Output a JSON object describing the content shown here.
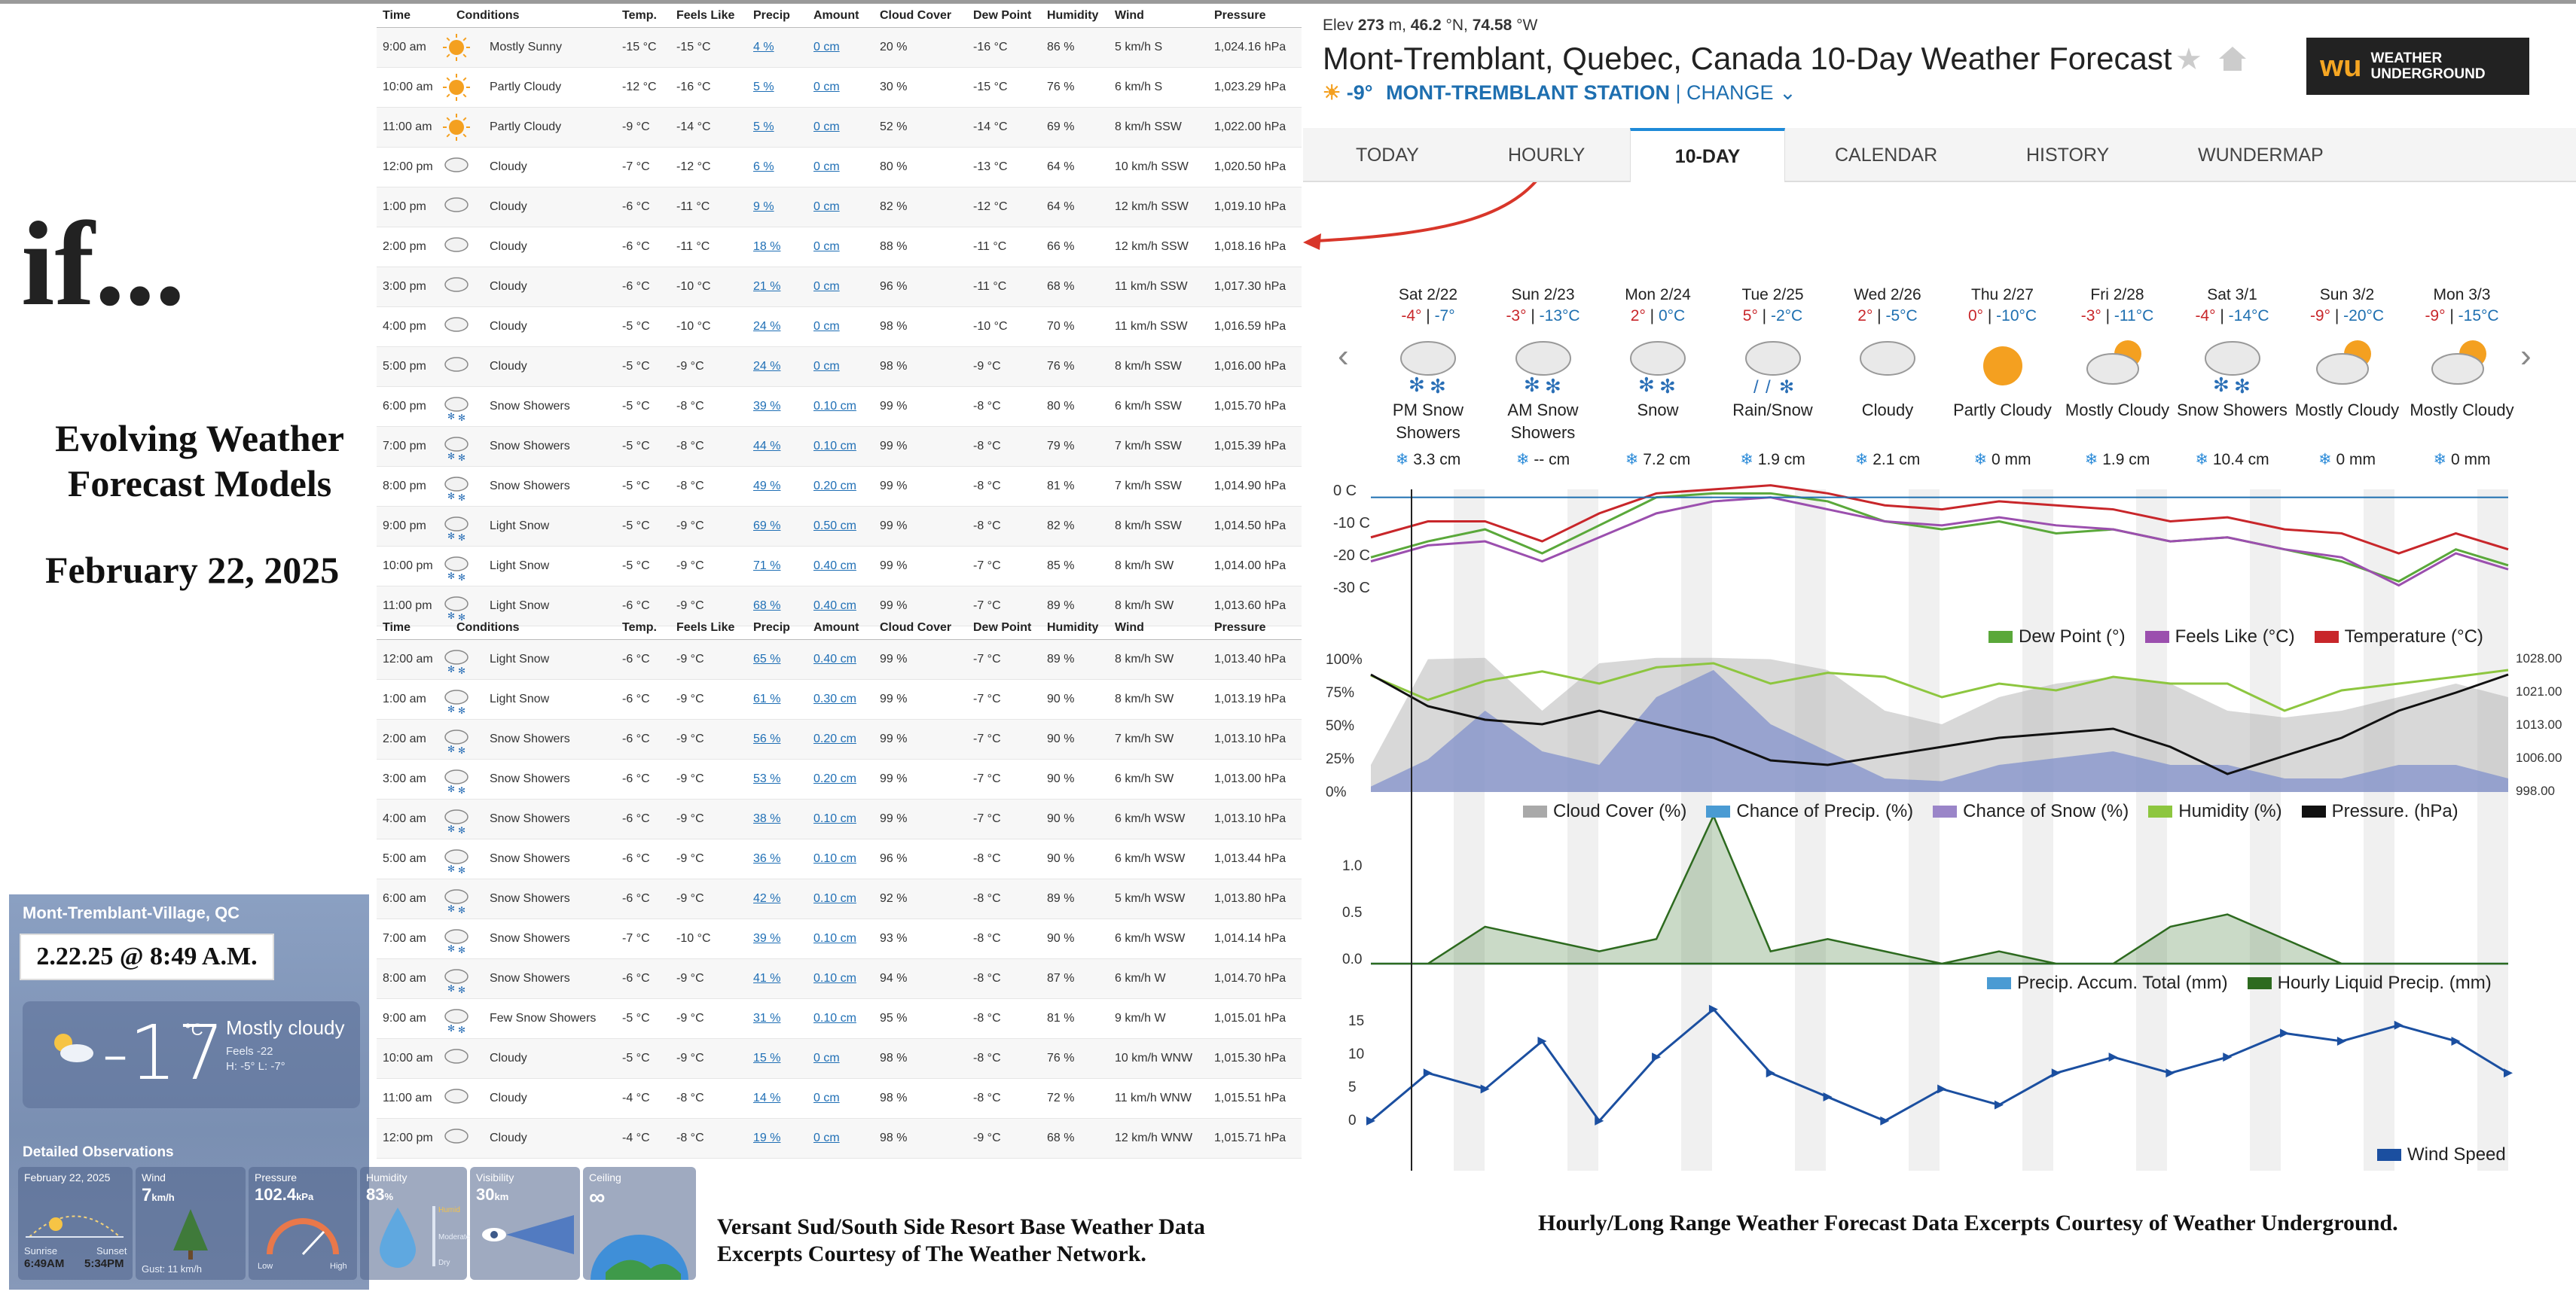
{
  "left": {
    "title": "if...",
    "subtitle": "Evolving Weather Forecast Models",
    "date": "February 22, 2025"
  },
  "table_headers": [
    "Time",
    "Conditions",
    "Temp.",
    "Feels Like",
    "Precip",
    "Amount",
    "Cloud Cover",
    "Dew Point",
    "Humidity",
    "Wind",
    "Pressure"
  ],
  "table1": [
    [
      "9:00 am",
      "sunny",
      "Mostly Sunny",
      "-15 °C",
      "-15 °C",
      "4 %",
      "0 cm",
      "20 %",
      "-16 °C",
      "86 %",
      "5 km/h S",
      "1,024.16 hPa"
    ],
    [
      "10:00 am",
      "sunny",
      "Partly Cloudy",
      "-12 °C",
      "-16 °C",
      "5 %",
      "0 cm",
      "30 %",
      "-15 °C",
      "76 %",
      "6 km/h S",
      "1,023.29 hPa"
    ],
    [
      "11:00 am",
      "sunny",
      "Partly Cloudy",
      "-9 °C",
      "-14 °C",
      "5 %",
      "0 cm",
      "52 %",
      "-14 °C",
      "69 %",
      "8 km/h SSW",
      "1,022.00 hPa"
    ],
    [
      "12:00 pm",
      "cloud",
      "Cloudy",
      "-7 °C",
      "-12 °C",
      "6 %",
      "0 cm",
      "80 %",
      "-13 °C",
      "64 %",
      "10 km/h SSW",
      "1,020.50 hPa"
    ],
    [
      "1:00 pm",
      "cloud",
      "Cloudy",
      "-6 °C",
      "-11 °C",
      "9 %",
      "0 cm",
      "82 %",
      "-12 °C",
      "64 %",
      "12 km/h SSW",
      "1,019.10 hPa"
    ],
    [
      "2:00 pm",
      "cloud",
      "Cloudy",
      "-6 °C",
      "-11 °C",
      "18 %",
      "0 cm",
      "88 %",
      "-11 °C",
      "66 %",
      "12 km/h SSW",
      "1,018.16 hPa"
    ],
    [
      "3:00 pm",
      "cloud",
      "Cloudy",
      "-6 °C",
      "-10 °C",
      "21 %",
      "0 cm",
      "96 %",
      "-11 °C",
      "68 %",
      "11 km/h SSW",
      "1,017.30 hPa"
    ],
    [
      "4:00 pm",
      "cloud",
      "Cloudy",
      "-5 °C",
      "-10 °C",
      "24 %",
      "0 cm",
      "98 %",
      "-10 °C",
      "70 %",
      "11 km/h SSW",
      "1,016.59 hPa"
    ],
    [
      "5:00 pm",
      "cloud",
      "Cloudy",
      "-5 °C",
      "-9 °C",
      "24 %",
      "0 cm",
      "98 %",
      "-9 °C",
      "76 %",
      "8 km/h SSW",
      "1,016.00 hPa"
    ],
    [
      "6:00 pm",
      "snow",
      "Snow Showers",
      "-5 °C",
      "-8 °C",
      "39 %",
      "0.10 cm",
      "99 %",
      "-8 °C",
      "80 %",
      "6 km/h SSW",
      "1,015.70 hPa"
    ],
    [
      "7:00 pm",
      "snow",
      "Snow Showers",
      "-5 °C",
      "-8 °C",
      "44 %",
      "0.10 cm",
      "99 %",
      "-8 °C",
      "79 %",
      "7 km/h SSW",
      "1,015.39 hPa"
    ],
    [
      "8:00 pm",
      "snow",
      "Snow Showers",
      "-5 °C",
      "-8 °C",
      "49 %",
      "0.20 cm",
      "99 %",
      "-8 °C",
      "81 %",
      "7 km/h SSW",
      "1,014.90 hPa"
    ],
    [
      "9:00 pm",
      "snow",
      "Light Snow",
      "-5 °C",
      "-9 °C",
      "69 %",
      "0.50 cm",
      "99 %",
      "-8 °C",
      "82 %",
      "8 km/h SSW",
      "1,014.50 hPa"
    ],
    [
      "10:00 pm",
      "snow",
      "Light Snow",
      "-5 °C",
      "-9 °C",
      "71 %",
      "0.40 cm",
      "99 %",
      "-7 °C",
      "85 %",
      "8 km/h SW",
      "1,014.00 hPa"
    ],
    [
      "11:00 pm",
      "snow",
      "Light Snow",
      "-6 °C",
      "-9 °C",
      "68 %",
      "0.40 cm",
      "99 %",
      "-7 °C",
      "89 %",
      "8 km/h SW",
      "1,013.60 hPa"
    ]
  ],
  "table2": [
    [
      "12:00 am",
      "snow",
      "Light Snow",
      "-6 °C",
      "-9 °C",
      "65 %",
      "0.40 cm",
      "99 %",
      "-7 °C",
      "89 %",
      "8 km/h SW",
      "1,013.40 hPa"
    ],
    [
      "1:00 am",
      "snow",
      "Light Snow",
      "-6 °C",
      "-9 °C",
      "61 %",
      "0.30 cm",
      "99 %",
      "-7 °C",
      "90 %",
      "8 km/h SW",
      "1,013.19 hPa"
    ],
    [
      "2:00 am",
      "snow",
      "Snow Showers",
      "-6 °C",
      "-9 °C",
      "56 %",
      "0.20 cm",
      "99 %",
      "-7 °C",
      "90 %",
      "7 km/h SW",
      "1,013.10 hPa"
    ],
    [
      "3:00 am",
      "snow",
      "Snow Showers",
      "-6 °C",
      "-9 °C",
      "53 %",
      "0.20 cm",
      "99 %",
      "-7 °C",
      "90 %",
      "6 km/h SW",
      "1,013.00 hPa"
    ],
    [
      "4:00 am",
      "snow",
      "Snow Showers",
      "-6 °C",
      "-9 °C",
      "38 %",
      "0.10 cm",
      "99 %",
      "-7 °C",
      "90 %",
      "6 km/h WSW",
      "1,013.10 hPa"
    ],
    [
      "5:00 am",
      "snow",
      "Snow Showers",
      "-6 °C",
      "-9 °C",
      "36 %",
      "0.10 cm",
      "96 %",
      "-8 °C",
      "90 %",
      "6 km/h WSW",
      "1,013.44 hPa"
    ],
    [
      "6:00 am",
      "snow",
      "Snow Showers",
      "-6 °C",
      "-9 °C",
      "42 %",
      "0.10 cm",
      "92 %",
      "-8 °C",
      "89 %",
      "5 km/h WSW",
      "1,013.80 hPa"
    ],
    [
      "7:00 am",
      "snow",
      "Snow Showers",
      "-7 °C",
      "-10 °C",
      "39 %",
      "0.10 cm",
      "93 %",
      "-8 °C",
      "90 %",
      "6 km/h WSW",
      "1,014.14 hPa"
    ],
    [
      "8:00 am",
      "snow",
      "Snow Showers",
      "-6 °C",
      "-9 °C",
      "41 %",
      "0.10 cm",
      "94 %",
      "-8 °C",
      "87 %",
      "6 km/h W",
      "1,014.70 hPa"
    ],
    [
      "9:00 am",
      "snow",
      "Few Snow Showers",
      "-5 °C",
      "-9 °C",
      "31 %",
      "0.10 cm",
      "95 %",
      "-8 °C",
      "81 %",
      "9 km/h W",
      "1,015.01 hPa"
    ],
    [
      "10:00 am",
      "cloud",
      "Cloudy",
      "-5 °C",
      "-9 °C",
      "15 %",
      "0 cm",
      "98 %",
      "-8 °C",
      "76 %",
      "10 km/h WNW",
      "1,015.30 hPa"
    ],
    [
      "11:00 am",
      "cloud",
      "Cloudy",
      "-4 °C",
      "-8 °C",
      "14 %",
      "0 cm",
      "98 %",
      "-8 °C",
      "72 %",
      "11 km/h WNW",
      "1,015.51 hPa"
    ],
    [
      "12:00 pm",
      "cloud",
      "Cloudy",
      "-4 °C",
      "-8 °C",
      "19 %",
      "0 cm",
      "98 %",
      "-9 °C",
      "68 %",
      "12 km/h WNW",
      "1,015.71 hPa"
    ]
  ],
  "twn": {
    "location": "Mont-Tremblant-Village, QC",
    "stamp": "2.22.25 @ 8:49 A.M.",
    "temp": "-17",
    "unit": "°C",
    "condition": "Mostly cloudy",
    "feels": "Feels -22",
    "hilo": "H: -5°   L: -7°",
    "detailed": "Detailed Observations",
    "cards": {
      "date": "February 22, 2025",
      "sunrise_label": "Sunrise",
      "sunrise": "6:49AM",
      "sunset_label": "Sunset",
      "sunset": "5:34PM",
      "wind_label": "Wind",
      "wind": "7",
      "wind_unit": "km/h",
      "gust": "Gust: 11 km/h",
      "pressure_label": "Pressure",
      "pressure": "102.4",
      "pressure_unit": "kPa",
      "low": "Low",
      "high": "High",
      "humidity_label": "Humidity",
      "humidity": "83",
      "humidity_unit": "%",
      "humid": "Humid",
      "moderate": "Moderate",
      "dry": "Dry",
      "visibility_label": "Visibility",
      "visibility": "30",
      "visibility_unit": "km",
      "ceiling_label": "Ceiling",
      "ceiling": "∞"
    },
    "credit": "Versant Sud/South Side Resort Base Weather Data Excerpts Courtesy of The Weather Network."
  },
  "wu": {
    "elev_label": "Elev",
    "elev": "273",
    "elev_unit": "m,",
    "lat": "46.2",
    "lat_unit": "°N,",
    "lon": "74.58",
    "lon_unit": "°W",
    "title": "Mont-Tremblant, Quebec, Canada 10-Day Weather Forecast",
    "cur_temp": "-9°",
    "station": "MONT-TREMBLANT STATION",
    "change": "CHANGE",
    "logo": "WEATHER UNDERGROUND",
    "logo_mark": "wu",
    "tabs": [
      "TODAY",
      "HOURLY",
      "10-DAY",
      "CALENDAR",
      "HISTORY",
      "WUNDERMAP"
    ],
    "days": [
      {
        "d": "Sat 2/22",
        "h": "-4°",
        "l": "-7°",
        "icon": "snow",
        "desc": "PM Snow Showers",
        "amt": "3.3 cm"
      },
      {
        "d": "Sun 2/23",
        "h": "-3°",
        "l": "-13°C",
        "icon": "snow",
        "desc": "AM Snow Showers",
        "amt": "-- cm"
      },
      {
        "d": "Mon 2/24",
        "h": "2°",
        "l": "0°C",
        "icon": "snow",
        "desc": "Snow",
        "amt": "7.2 cm"
      },
      {
        "d": "Tue 2/25",
        "h": "5°",
        "l": "-2°C",
        "icon": "rain",
        "desc": "Rain/Snow",
        "amt": "1.9 cm"
      },
      {
        "d": "Wed 2/26",
        "h": "2°",
        "l": "-5°C",
        "icon": "cloud",
        "desc": "Cloudy",
        "amt": "2.1 cm"
      },
      {
        "d": "Thu 2/27",
        "h": "0°",
        "l": "-10°C",
        "icon": "partly",
        "desc": "Partly Cloudy",
        "amt": "0 mm"
      },
      {
        "d": "Fri 2/28",
        "h": "-3°",
        "l": "-11°C",
        "icon": "mostly",
        "desc": "Mostly Cloudy",
        "amt": "1.9 cm"
      },
      {
        "d": "Sat 3/1",
        "h": "-4°",
        "l": "-14°C",
        "icon": "snow",
        "desc": "Snow Showers",
        "amt": "10.4 cm"
      },
      {
        "d": "Sun 3/2",
        "h": "-9°",
        "l": "-20°C",
        "icon": "mostly",
        "desc": "Mostly Cloudy",
        "amt": "0 mm"
      },
      {
        "d": "Mon 3/3",
        "h": "-9°",
        "l": "-15°C",
        "icon": "mostly",
        "desc": "Mostly Cloudy",
        "amt": "0 mm"
      }
    ],
    "credit": "Hourly/Long Range Weather Forecast Data Excerpts Courtesy of Weather Underground."
  },
  "chart_data": [
    {
      "type": "line",
      "x_unit": "hours from Sat 2/22 00:00",
      "x": [
        0,
        12,
        24,
        36,
        48,
        60,
        72,
        84,
        96,
        108,
        120,
        132,
        144,
        156,
        168,
        180,
        192,
        204,
        216,
        228,
        239
      ],
      "yticks": [
        "0 C",
        "-10 C",
        "-20 C",
        "-30 C"
      ],
      "ylim": [
        -30,
        2
      ],
      "series": [
        {
          "name": "Temperature (°C)",
          "color": "#c8262a",
          "values": [
            -10,
            -6,
            -6,
            -11,
            -4,
            1,
            2,
            3,
            1,
            -2,
            -3,
            -1,
            -2,
            -3,
            -6,
            -5,
            -8,
            -9,
            -14,
            -9,
            -13
          ]
        },
        {
          "name": "Dew Point (°)",
          "color": "#5aa83a",
          "values": [
            -15,
            -11,
            -8,
            -14,
            -7,
            0,
            1,
            1,
            -1,
            -6,
            -8,
            -6,
            -9,
            -8,
            -11,
            -10,
            -13,
            -16,
            -21,
            -13,
            -17
          ]
        },
        {
          "name": "Feels Like (°C)",
          "color": "#9b4fae",
          "values": [
            -16,
            -12,
            -11,
            -16,
            -10,
            -4,
            -1,
            0,
            -3,
            -6,
            -7,
            -5,
            -7,
            -8,
            -11,
            -10,
            -13,
            -15,
            -22,
            -14,
            -18
          ]
        }
      ]
    },
    {
      "type": "area",
      "yticks_left": [
        "100%",
        "75%",
        "50%",
        "25%",
        "0%"
      ],
      "yticks_right": [
        "1028.00",
        "1021.00",
        "1013.00",
        "1006.00",
        "998.00"
      ],
      "x": [
        0,
        12,
        24,
        36,
        48,
        60,
        72,
        84,
        96,
        108,
        120,
        132,
        144,
        156,
        168,
        180,
        192,
        204,
        216,
        228,
        239
      ],
      "series": [
        {
          "name": "Cloud Cover (%)",
          "color": "#a9a9a9",
          "values": [
            20,
            98,
            99,
            60,
            95,
            99,
            99,
            98,
            90,
            60,
            50,
            70,
            80,
            85,
            80,
            60,
            55,
            60,
            70,
            80,
            70
          ]
        },
        {
          "name": "Chance of Precip. (%)",
          "color": "#4a9bd3",
          "values": [
            4,
            24,
            60,
            30,
            20,
            70,
            90,
            50,
            30,
            10,
            8,
            20,
            25,
            30,
            20,
            20,
            10,
            10,
            20,
            20,
            10
          ]
        },
        {
          "name": "Chance of Snow (%)",
          "color": "#9a85c8",
          "values": [
            4,
            24,
            60,
            30,
            20,
            70,
            90,
            50,
            30,
            10,
            8,
            20,
            25,
            30,
            20,
            20,
            10,
            10,
            20,
            20,
            10
          ]
        },
        {
          "name": "Humidity (%)",
          "color": "#8dc63f",
          "values": [
            86,
            68,
            82,
            89,
            80,
            92,
            95,
            80,
            88,
            85,
            70,
            80,
            75,
            85,
            80,
            80,
            60,
            75,
            80,
            85,
            90
          ]
        },
        {
          "name": "Pressure. (hPa)",
          "color": "#111",
          "pressure": true,
          "values": [
            1024,
            1017,
            1014,
            1013,
            1016,
            1013,
            1010,
            1005,
            1004,
            1006,
            1008,
            1010,
            1011,
            1012,
            1008,
            1002,
            1006,
            1010,
            1016,
            1020,
            1024
          ]
        }
      ]
    },
    {
      "type": "area",
      "yticks": [
        "1.0",
        "0.5",
        "0.0"
      ],
      "ylim": [
        0,
        1.1
      ],
      "x": [
        0,
        12,
        24,
        36,
        48,
        60,
        72,
        84,
        96,
        108,
        120,
        132,
        144,
        156,
        168,
        180,
        192,
        204,
        216,
        228,
        239
      ],
      "series": [
        {
          "name": "Precip. Accum. Total (mm)",
          "color": "#4a9bd3",
          "values": [
            0,
            0,
            0,
            0,
            0,
            0,
            0,
            0,
            0,
            0,
            0,
            0,
            0,
            0,
            0,
            0,
            0,
            0,
            0,
            0,
            0
          ]
        },
        {
          "name": "Hourly Liquid Precip. (mm)",
          "color": "#2d6a1f",
          "values": [
            0,
            0,
            0.3,
            0.2,
            0.1,
            0.2,
            1.2,
            0.1,
            0.2,
            0.1,
            0,
            0.1,
            0,
            0,
            0.3,
            0.4,
            0.2,
            0,
            0,
            0,
            0
          ]
        }
      ]
    },
    {
      "type": "line",
      "yticks": [
        "15",
        "10",
        "5",
        "0"
      ],
      "ylim": [
        0,
        17
      ],
      "x": [
        0,
        12,
        24,
        36,
        48,
        60,
        72,
        84,
        96,
        108,
        120,
        132,
        144,
        156,
        168,
        180,
        192,
        204,
        216,
        228,
        239
      ],
      "series": [
        {
          "name": "Wind Speed",
          "color": "#1b4fa0",
          "values": [
            2,
            8,
            6,
            12,
            2,
            10,
            16,
            8,
            5,
            2,
            6,
            4,
            8,
            10,
            8,
            10,
            13,
            12,
            14,
            12,
            8
          ]
        }
      ]
    }
  ]
}
